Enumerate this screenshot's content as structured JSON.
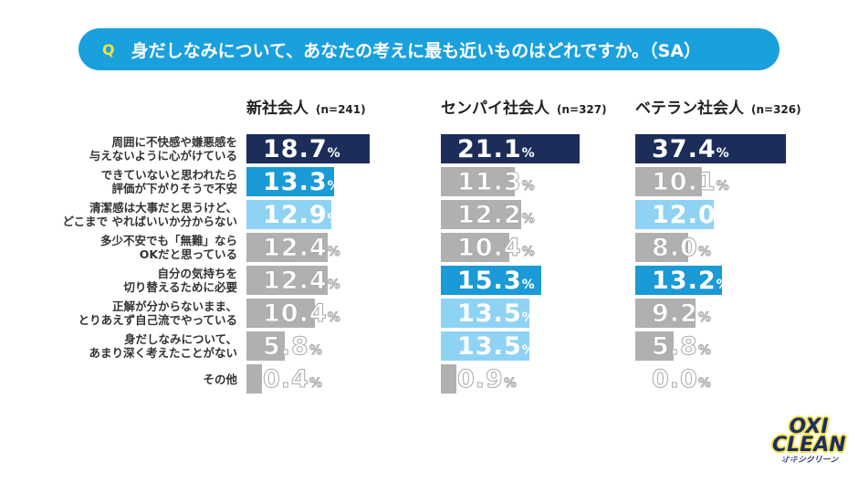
{
  "question": {
    "mark": "Q",
    "text": "身だしなみについて、あなたの考えに最も近いものはどれですか。（SA）"
  },
  "logo": {
    "line1": "OXI",
    "line2": "CLEAN",
    "kana": "オキシクリーン"
  },
  "colors": {
    "navy": "#1c2d5a",
    "blue": "#1a9ad6",
    "light": "#8fd3f4",
    "gray": "#b0b0b0",
    "header": "#1aa0dc",
    "q_mark": "#f5e142"
  },
  "chart_data": {
    "type": "bar",
    "orientation": "horizontal",
    "unit": "%",
    "categories": [
      "周囲に不快感や嫌悪感を\n与えないように心がけている",
      "できていないと思われたら\n評価が下がりそうで不安",
      "清潔感は大事だと思うけど、\nどこまで やればいいか分からない",
      "多少不安でも「無難」なら\nOKだと思っている",
      "自分の気持ちを\n切り替えるために必要",
      "正解が分からないまま、\nとりあえず自己流でやっている",
      "身だしなみについて、\nあまり深く考えたことがない",
      "その他"
    ],
    "series": [
      {
        "name": "新社会人",
        "n": "(n=241)",
        "values": [
          18.7,
          13.3,
          12.9,
          12.4,
          12.4,
          10.4,
          5.8,
          0.4
        ],
        "colors": [
          "navy",
          "blue",
          "light",
          "gray",
          "gray",
          "gray",
          "gray",
          "gray"
        ]
      },
      {
        "name": "センパイ社会人",
        "n": "(n=327)",
        "values": [
          21.1,
          11.3,
          12.2,
          10.4,
          15.3,
          13.5,
          13.5,
          0.9
        ],
        "colors": [
          "navy",
          "gray",
          "gray",
          "gray",
          "blue",
          "light",
          "light",
          "gray"
        ]
      },
      {
        "name": "ベテラン社会人",
        "n": "(n=326)",
        "values": [
          37.4,
          10.1,
          12.0,
          8.0,
          13.2,
          9.2,
          5.8,
          0.0
        ],
        "colors": [
          "navy",
          "gray",
          "light",
          "gray",
          "blue",
          "gray",
          "gray",
          "gray"
        ]
      }
    ]
  }
}
